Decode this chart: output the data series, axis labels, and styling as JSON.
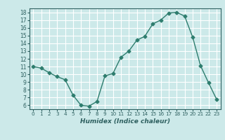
{
  "x": [
    0,
    1,
    2,
    3,
    4,
    5,
    6,
    7,
    8,
    9,
    10,
    11,
    12,
    13,
    14,
    15,
    16,
    17,
    18,
    19,
    20,
    21,
    22,
    23
  ],
  "y": [
    11,
    10.8,
    10.2,
    9.7,
    9.3,
    7.3,
    6.0,
    5.9,
    6.5,
    9.8,
    10.1,
    12.2,
    13.0,
    14.4,
    14.9,
    16.5,
    17.0,
    17.9,
    18.0,
    17.5,
    14.8,
    11.1,
    8.9,
    6.8
  ],
  "xlabel": "Humidex (Indice chaleur)",
  "line_color": "#2e7d6e",
  "marker": "D",
  "marker_size": 2.5,
  "bg_color": "#cce9e9",
  "grid_color": "#ffffff",
  "xlim": [
    -0.5,
    23.5
  ],
  "ylim": [
    5.5,
    18.5
  ],
  "yticks": [
    6,
    7,
    8,
    9,
    10,
    11,
    12,
    13,
    14,
    15,
    16,
    17,
    18
  ],
  "xticks": [
    0,
    1,
    2,
    3,
    4,
    5,
    6,
    7,
    8,
    9,
    10,
    11,
    12,
    13,
    14,
    15,
    16,
    17,
    18,
    19,
    20,
    21,
    22,
    23
  ]
}
